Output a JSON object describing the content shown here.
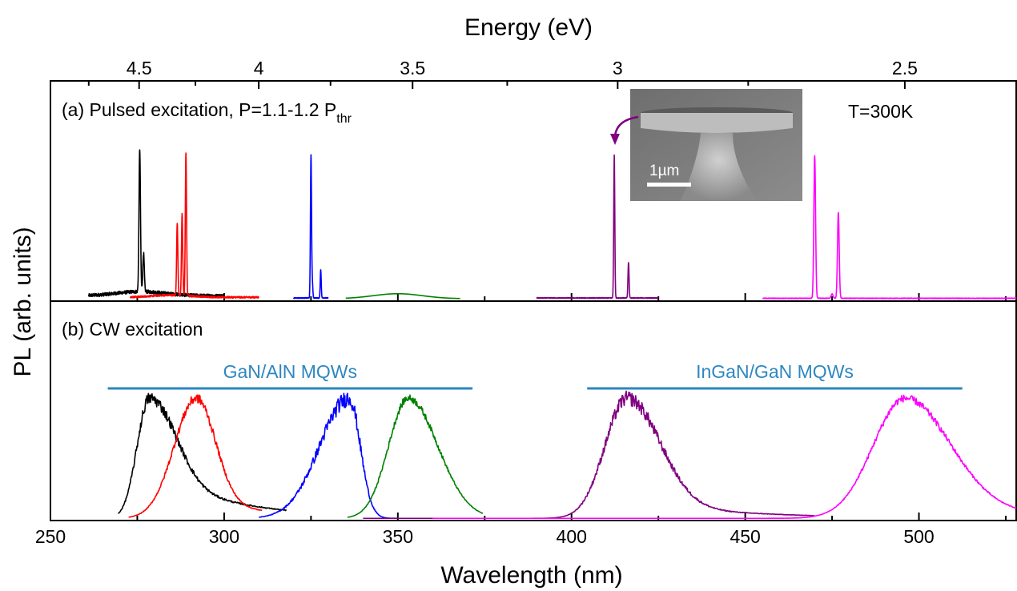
{
  "chart_data": {
    "type": "line",
    "xlabel": "Wavelength (nm)",
    "x2label": "Energy (eV)",
    "ylabel": "PL (arb. units)",
    "xlim": [
      250,
      528
    ],
    "xticks": [
      "250",
      "300",
      "350",
      "400",
      "450",
      "500"
    ],
    "x2ticks": [
      {
        "label": "4.5",
        "ev": 4.5
      },
      {
        "label": "4",
        "ev": 4.0
      },
      {
        "label": "3.5",
        "ev": 3.5
      },
      {
        "label": "3",
        "ev": 3.0
      },
      {
        "label": "2.5",
        "ev": 2.5
      }
    ],
    "panel_a": {
      "label": "(a) Pulsed excitation, P=1.1-1.2 P",
      "label_sub": "thr",
      "temperature": "T=300K",
      "inset": {
        "scale_label": "1µm"
      },
      "series": [
        {
          "color": "#000000",
          "range": [
            261,
            300
          ],
          "baseline": 0.02,
          "bump": {
            "c": 276,
            "w": 10,
            "h": 0.03
          },
          "peaks": [
            {
              "x": 275.7,
              "h": 1.0,
              "w": 0.3
            },
            {
              "x": 276.8,
              "h": 0.27,
              "w": 0.3
            }
          ]
        },
        {
          "color": "#ff0000",
          "range": [
            273,
            310
          ],
          "baseline": 0.01,
          "bump": {
            "c": 285,
            "w": 8,
            "h": 0.015
          },
          "peaks": [
            {
              "x": 286.5,
              "h": 0.51,
              "w": 0.25
            },
            {
              "x": 287.9,
              "h": 0.57,
              "w": 0.25
            },
            {
              "x": 289.0,
              "h": 1.0,
              "w": 0.25
            }
          ]
        },
        {
          "color": "#0000ff",
          "range": [
            320,
            330
          ],
          "baseline": 0.005,
          "peaks": [
            {
              "x": 325.0,
              "h": 1.0,
              "w": 0.22
            },
            {
              "x": 325.4,
              "h": 0.1,
              "w": 0.2
            },
            {
              "x": 327.8,
              "h": 0.2,
              "w": 0.2
            }
          ]
        },
        {
          "color": "#008000",
          "range": [
            335,
            368
          ],
          "baseline": 0.0,
          "bump": {
            "c": 350,
            "w": 10,
            "h": 0.035
          },
          "peaks": []
        },
        {
          "color": "#800080",
          "range": [
            390,
            425
          ],
          "baseline": 0.005,
          "peaks": [
            {
              "x": 412.3,
              "h": 1.0,
              "w": 0.22
            },
            {
              "x": 416.4,
              "h": 0.25,
              "w": 0.22
            }
          ]
        },
        {
          "color": "#ff00ff",
          "range": [
            455,
            528
          ],
          "baseline": 0.003,
          "peaks": [
            {
              "x": 470.0,
              "h": 1.0,
              "w": 0.35
            },
            {
              "x": 476.8,
              "h": 0.6,
              "w": 0.35
            },
            {
              "x": 475.0,
              "h": 0.03,
              "w": 0.4
            }
          ]
        }
      ]
    },
    "panel_b": {
      "label": "(b) CW excitation",
      "groups": [
        {
          "label": "GaN/AlN MQWs",
          "x_start": 266.5,
          "x_end": 371.5,
          "color": "#2e86c1"
        },
        {
          "label": "InGaN/GaN MQWs",
          "x_start": 404.5,
          "x_end": 512.5,
          "color": "#2e86c1"
        }
      ],
      "series": [
        {
          "color": "#000000",
          "range": [
            269.5,
            318
          ],
          "peak_x": 278.5,
          "w_left": 5,
          "w_right": 10,
          "tail": 0.4,
          "noise": 0.05
        },
        {
          "color": "#ff0000",
          "range": [
            272.5,
            311
          ],
          "peak_x": 292,
          "w_left": 9,
          "w_right": 7.5,
          "tail": 0.2,
          "noise": 0.04
        },
        {
          "color": "#0000ff",
          "range": [
            310,
            350
          ],
          "peak_x": 336,
          "w_left": 12,
          "w_right": 4.5,
          "tail": 0.0,
          "noise": 0.07
        },
        {
          "color": "#008000",
          "range": [
            335.5,
            374.5
          ],
          "peak_x": 353,
          "w_left": 8,
          "w_right": 12,
          "tail": 0.0,
          "noise": 0.03
        },
        {
          "color": "#800080",
          "range": [
            340,
            470
          ],
          "peak_x": 416,
          "w_left": 9,
          "w_right": 13,
          "tail": 0.15,
          "noise": 0.06
        },
        {
          "color": "#ff00ff",
          "range": [
            360,
            528
          ],
          "peak_x": 496,
          "w_left": 13,
          "w_right": 18,
          "tail": 0.1,
          "noise": 0.03
        }
      ]
    }
  }
}
